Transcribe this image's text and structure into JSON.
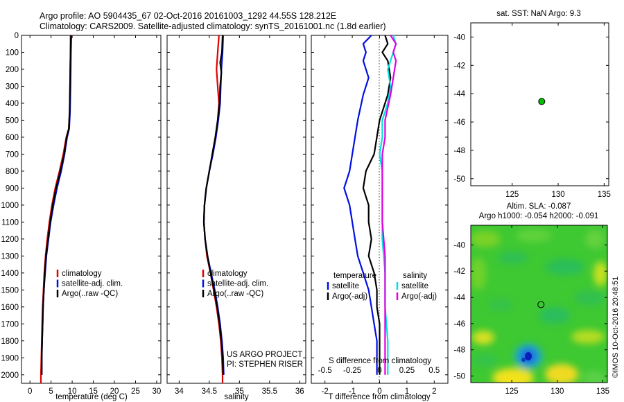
{
  "header": {
    "line1": "Argo profile: AO 5904435_67 02-Oct-2016 20161003_1292 44.55S 128.212E",
    "line2": "Climatology: CARS2009. Satellite-adjusted climatology: synTS_20161001.nc (1.8d earlier)"
  },
  "colors": {
    "climatology": "#e00000",
    "satellite": "#0010e0",
    "argo": "#000000",
    "satellite_salinity": "#00e0e0",
    "argo_salinity": "#e000e0",
    "marker": "#00c000"
  },
  "depth_axis": {
    "ylim": [
      0,
      2050
    ],
    "ticks": [
      "0",
      "100",
      "200",
      "300",
      "400",
      "500",
      "600",
      "700",
      "800",
      "900",
      "1000",
      "1100",
      "1200",
      "1300",
      "1400",
      "1500",
      "1600",
      "1700",
      "1800",
      "1900",
      "2000"
    ]
  },
  "chart_data": [
    {
      "type": "line",
      "id": "temperature",
      "xlabel": "temperature (deg C)",
      "xlim": [
        -2,
        31
      ],
      "xticks": [
        "0",
        "5",
        "10",
        "15",
        "20",
        "25",
        "30"
      ],
      "legend": [
        "climatology",
        "satellite-adj. clim.",
        "Argo(..raw -QC)"
      ],
      "series": [
        {
          "name": "climatology",
          "color_key": "climatology",
          "points": [
            [
              9.6,
              0
            ],
            [
              9.6,
              100
            ],
            [
              9.5,
              300
            ],
            [
              9.4,
              450
            ],
            [
              9.2,
              550
            ],
            [
              8.6,
              600
            ],
            [
              7.9,
              700
            ],
            [
              7.0,
              800
            ],
            [
              6.0,
              900
            ],
            [
              5.2,
              1000
            ],
            [
              4.6,
              1100
            ],
            [
              4.1,
              1200
            ],
            [
              3.7,
              1300
            ],
            [
              3.4,
              1400
            ],
            [
              3.2,
              1500
            ],
            [
              3.0,
              1600
            ],
            [
              2.9,
              1700
            ],
            [
              2.8,
              1800
            ],
            [
              2.7,
              1900
            ],
            [
              2.6,
              2000
            ],
            [
              2.6,
              2050
            ]
          ]
        },
        {
          "name": "satellite-adj. clim.",
          "color_key": "satellite",
          "points": [
            [
              9.8,
              0
            ],
            [
              9.7,
              100
            ],
            [
              9.6,
              300
            ],
            [
              9.5,
              450
            ],
            [
              9.3,
              550
            ],
            [
              8.8,
              600
            ],
            [
              8.2,
              700
            ],
            [
              7.4,
              800
            ],
            [
              6.4,
              900
            ],
            [
              5.6,
              1000
            ],
            [
              4.9,
              1100
            ],
            [
              4.4,
              1200
            ],
            [
              3.9,
              1300
            ],
            [
              3.6,
              1400
            ],
            [
              3.3,
              1500
            ],
            [
              3.1,
              1600
            ],
            [
              3.0,
              1700
            ],
            [
              2.9,
              1800
            ],
            [
              2.8,
              1900
            ],
            [
              2.8,
              2000
            ]
          ]
        },
        {
          "name": "Argo(..raw -QC)",
          "color_key": "argo",
          "points": [
            [
              9.7,
              0
            ],
            [
              9.6,
              100
            ],
            [
              9.5,
              300
            ],
            [
              9.4,
              450
            ],
            [
              9.2,
              550
            ],
            [
              8.7,
              600
            ],
            [
              8.1,
              700
            ],
            [
              7.2,
              800
            ],
            [
              6.2,
              900
            ],
            [
              5.4,
              1000
            ],
            [
              4.8,
              1100
            ],
            [
              4.3,
              1200
            ],
            [
              3.8,
              1300
            ],
            [
              3.5,
              1400
            ],
            [
              3.3,
              1500
            ],
            [
              3.1,
              1600
            ],
            [
              3.0,
              1700
            ],
            [
              2.9,
              1800
            ],
            [
              2.8,
              1900
            ],
            [
              2.8,
              2000
            ]
          ]
        }
      ]
    },
    {
      "type": "line",
      "id": "salinity",
      "xlabel": "salinity",
      "xlim": [
        33.8,
        36.1
      ],
      "xticks": [
        "34",
        "34.5",
        "35",
        "35.5",
        "36"
      ],
      "legend": [
        "climatology",
        "satellite-adj. clim.",
        "Argo(..raw -QC)"
      ],
      "annotation": [
        "US ARGO PROJECT",
        "PI: STEPHEN RISER"
      ],
      "series": [
        {
          "name": "climatology",
          "color_key": "climatology",
          "points": [
            [
              34.66,
              0
            ],
            [
              34.64,
              100
            ],
            [
              34.62,
              200
            ],
            [
              34.64,
              300
            ],
            [
              34.66,
              400
            ],
            [
              34.64,
              500
            ],
            [
              34.6,
              600
            ],
            [
              34.55,
              700
            ],
            [
              34.5,
              800
            ],
            [
              34.45,
              900
            ],
            [
              34.42,
              1000
            ],
            [
              34.41,
              1100
            ],
            [
              34.43,
              1200
            ],
            [
              34.46,
              1300
            ],
            [
              34.52,
              1400
            ],
            [
              34.57,
              1500
            ],
            [
              34.62,
              1600
            ],
            [
              34.66,
              1700
            ],
            [
              34.69,
              1800
            ],
            [
              34.71,
              1900
            ],
            [
              34.72,
              2000
            ],
            [
              34.72,
              2050
            ]
          ]
        },
        {
          "name": "satellite-adj. clim.",
          "color_key": "satellite",
          "points": [
            [
              34.73,
              0
            ],
            [
              34.72,
              100
            ],
            [
              34.7,
              200
            ],
            [
              34.69,
              300
            ],
            [
              34.68,
              400
            ],
            [
              34.65,
              500
            ],
            [
              34.61,
              600
            ],
            [
              34.56,
              700
            ],
            [
              34.5,
              800
            ],
            [
              34.45,
              900
            ],
            [
              34.42,
              1000
            ],
            [
              34.41,
              1100
            ],
            [
              34.43,
              1200
            ],
            [
              34.47,
              1300
            ],
            [
              34.53,
              1400
            ],
            [
              34.59,
              1500
            ],
            [
              34.64,
              1600
            ],
            [
              34.68,
              1700
            ],
            [
              34.71,
              1800
            ],
            [
              34.73,
              1900
            ],
            [
              34.74,
              2000
            ]
          ]
        },
        {
          "name": "Argo(..raw -QC)",
          "color_key": "argo",
          "points": [
            [
              34.72,
              0
            ],
            [
              34.71,
              100
            ],
            [
              34.68,
              160
            ],
            [
              34.7,
              220
            ],
            [
              34.68,
              300
            ],
            [
              34.67,
              400
            ],
            [
              34.64,
              500
            ],
            [
              34.6,
              600
            ],
            [
              34.55,
              700
            ],
            [
              34.5,
              800
            ],
            [
              34.45,
              900
            ],
            [
              34.42,
              1000
            ],
            [
              34.41,
              1100
            ],
            [
              34.43,
              1200
            ],
            [
              34.47,
              1300
            ],
            [
              34.52,
              1400
            ],
            [
              34.58,
              1500
            ],
            [
              34.63,
              1600
            ],
            [
              34.67,
              1700
            ],
            [
              34.7,
              1800
            ],
            [
              34.72,
              1900
            ],
            [
              34.73,
              2000
            ]
          ]
        }
      ]
    },
    {
      "type": "line",
      "id": "difference",
      "xlabel": "T difference from climatology",
      "xlim": [
        -2.5,
        2.5
      ],
      "xticks": [
        "-2",
        "-1",
        "0",
        "1",
        "2"
      ],
      "secondary_label": "S difference from climatology",
      "secondary_ticks": [
        {
          "label": "-0.5",
          "at": -2
        },
        {
          "label": "-0.25",
          "at": -1
        },
        {
          "label": "0",
          "at": 0
        },
        {
          "label": "0.25",
          "at": 1
        },
        {
          "label": "0.5",
          "at": 2
        }
      ],
      "legend_groups": [
        {
          "title": "temperature",
          "items": [
            "satellite",
            "Argo(-adj)"
          ]
        },
        {
          "title": "salinity",
          "items": [
            "satellite",
            "Argo(-adj)"
          ]
        }
      ],
      "series": [
        {
          "name": "satellite",
          "group": "temperature",
          "color_key": "satellite",
          "points": [
            [
              -0.3,
              0
            ],
            [
              -0.6,
              50
            ],
            [
              -0.5,
              100
            ],
            [
              -0.6,
              150
            ],
            [
              -0.4,
              250
            ],
            [
              -0.6,
              350
            ],
            [
              -0.8,
              500
            ],
            [
              -1.0,
              700
            ],
            [
              -1.1,
              800
            ],
            [
              -1.3,
              900
            ],
            [
              -1.1,
              1000
            ],
            [
              -1.0,
              1100
            ],
            [
              -0.9,
              1200
            ],
            [
              -0.8,
              1300
            ],
            [
              -0.6,
              1400
            ],
            [
              -0.4,
              1500
            ],
            [
              -0.3,
              1600
            ],
            [
              -0.2,
              1700
            ],
            [
              -0.1,
              1800
            ],
            [
              -0.1,
              1900
            ],
            [
              -0.1,
              2000
            ]
          ]
        },
        {
          "name": "Argo(-adj)",
          "group": "temperature",
          "color_key": "argo",
          "points": [
            [
              0.2,
              0
            ],
            [
              0.3,
              50
            ],
            [
              0.1,
              100
            ],
            [
              0.3,
              150
            ],
            [
              0.4,
              250
            ],
            [
              0.3,
              350
            ],
            [
              0.0,
              500
            ],
            [
              -0.2,
              700
            ],
            [
              -0.5,
              800
            ],
            [
              -0.6,
              900
            ],
            [
              -0.4,
              1000
            ],
            [
              -0.4,
              1100
            ],
            [
              -0.3,
              1200
            ],
            [
              -0.4,
              1300
            ],
            [
              -0.2,
              1400
            ],
            [
              -0.1,
              1500
            ],
            [
              -0.1,
              1600
            ],
            [
              0.0,
              1700
            ],
            [
              0.0,
              1800
            ],
            [
              0.0,
              1900
            ],
            [
              0.0,
              2000
            ]
          ]
        },
        {
          "name": "satellite",
          "group": "salinity",
          "color_key": "satellite_salinity",
          "points": [
            [
              0.5,
              0
            ],
            [
              0.6,
              50
            ],
            [
              0.5,
              100
            ],
            [
              0.3,
              200
            ],
            [
              0.4,
              300
            ],
            [
              0.3,
              400
            ],
            [
              0.1,
              500
            ],
            [
              0.1,
              600
            ],
            [
              0.0,
              700
            ],
            [
              0.1,
              800
            ],
            [
              0.1,
              1000
            ],
            [
              0.1,
              1100
            ],
            [
              0.1,
              1200
            ],
            [
              0.2,
              1400
            ],
            [
              0.2,
              1600
            ],
            [
              0.3,
              1800
            ],
            [
              0.3,
              1900
            ],
            [
              0.3,
              2000
            ]
          ]
        },
        {
          "name": "Argo(-adj)",
          "group": "salinity",
          "color_key": "argo_salinity",
          "points": [
            [
              0.4,
              0
            ],
            [
              0.6,
              50
            ],
            [
              0.5,
              100
            ],
            [
              0.6,
              150
            ],
            [
              0.5,
              250
            ],
            [
              0.4,
              350
            ],
            [
              0.2,
              500
            ],
            [
              0.2,
              600
            ],
            [
              0.1,
              700
            ],
            [
              0.1,
              900
            ],
            [
              0.1,
              1100
            ],
            [
              0.2,
              1300
            ],
            [
              0.2,
              1500
            ],
            [
              0.2,
              1700
            ],
            [
              0.2,
              1900
            ],
            [
              0.2,
              2000
            ]
          ]
        }
      ]
    },
    {
      "type": "scatter",
      "id": "sst_map",
      "title": "sat. SST: NaN Argo: 9.3",
      "xlim": [
        120.5,
        135.5
      ],
      "ylim": [
        -50.5,
        -39
      ],
      "xticks": [
        "125",
        "130",
        "135"
      ],
      "yticks": [
        "-40",
        "-42",
        "-44",
        "-46",
        "-48",
        "-50"
      ],
      "points": [
        {
          "x": 128.212,
          "y": -44.55
        }
      ]
    },
    {
      "type": "heatmap",
      "id": "sla_map",
      "title_lines": [
        "Altim. SLA: -0.087",
        "Argo h1000: -0.054 h2000: -0.091"
      ],
      "xlim": [
        120.5,
        135.5
      ],
      "ylim": [
        -50.5,
        -38.5
      ],
      "xticks": [
        "125",
        "130",
        "135"
      ],
      "yticks": [
        "-40",
        "-42",
        "-44",
        "-46",
        "-48",
        "-50"
      ],
      "points": [
        {
          "x": 128.212,
          "y": -44.55
        }
      ]
    }
  ],
  "footer": {
    "credit": "©IMOS 10-Oct-2016 20:48:51"
  }
}
